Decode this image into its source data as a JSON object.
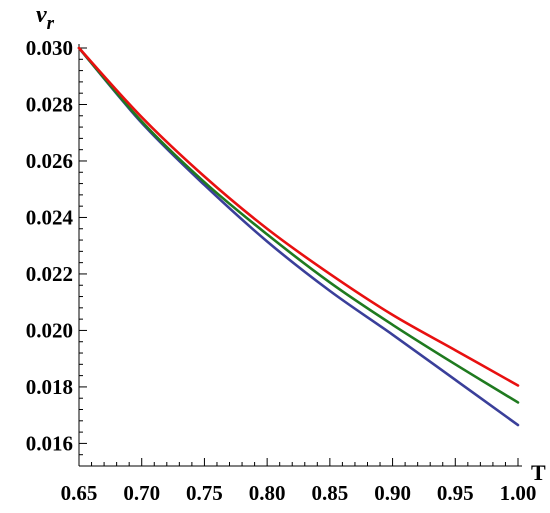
{
  "chart_data": {
    "type": "line",
    "xlabel": "T",
    "ylabel": {
      "base": "v",
      "subscript": "r"
    },
    "xlim": [
      0.65,
      1.0
    ],
    "ylim": [
      0.0152,
      0.03
    ],
    "x_ticks": [
      0.65,
      0.7,
      0.75,
      0.8,
      0.85,
      0.9,
      0.95,
      1.0
    ],
    "x_tick_labels": [
      "0.65",
      "0.70",
      "0.75",
      "0.80",
      "0.85",
      "0.90",
      "0.95",
      "1.00"
    ],
    "y_ticks": [
      0.016,
      0.018,
      0.02,
      0.022,
      0.024,
      0.026,
      0.028,
      0.03
    ],
    "y_tick_labels": [
      "0.016",
      "0.018",
      "0.020",
      "0.022",
      "0.024",
      "0.026",
      "0.028",
      "0.030"
    ],
    "grid": false,
    "series": [
      {
        "color": "#3a3f9a",
        "x": [
          0.65,
          0.7,
          0.75,
          0.8,
          0.85,
          0.9,
          0.95,
          1.0
        ],
        "y": [
          0.03,
          0.02735,
          0.02515,
          0.02315,
          0.0214,
          0.01985,
          0.01825,
          0.01665
        ]
      },
      {
        "color": "#1f7a1f",
        "x": [
          0.65,
          0.7,
          0.75,
          0.8,
          0.85,
          0.9,
          0.95,
          1.0
        ],
        "y": [
          0.03,
          0.0274,
          0.02525,
          0.0234,
          0.0217,
          0.0202,
          0.0188,
          0.01745
        ]
      },
      {
        "color": "#e81010",
        "x": [
          0.65,
          0.7,
          0.75,
          0.8,
          0.85,
          0.9,
          0.95,
          1.0
        ],
        "y": [
          0.03,
          0.02755,
          0.02545,
          0.0236,
          0.022,
          0.02055,
          0.0193,
          0.01805
        ]
      }
    ]
  }
}
